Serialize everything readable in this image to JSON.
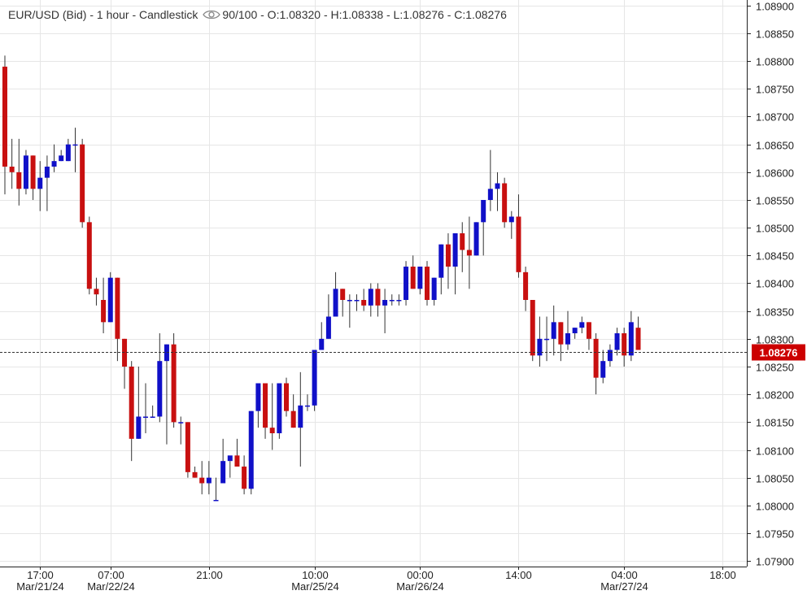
{
  "header": {
    "title": "EUR/USD (Bid) - 1 hour - Candlestick",
    "views": "90/100",
    "ohlc": "- O:1.08320 - H:1.08338 - L:1.08276 - C:1.08276"
  },
  "colors": {
    "up": "#1010c8",
    "down": "#c81010",
    "grid": "#e6e6e6",
    "axis": "#222222",
    "price_tag": "#cc0000"
  },
  "chart_data": {
    "type": "candlestick",
    "symbol": "EUR/USD (Bid)",
    "interval": "1 hour",
    "ylim": [
      1.0789,
      1.0891
    ],
    "y_ticks": [
      "1.07900",
      "1.07950",
      "1.08000",
      "1.08050",
      "1.08100",
      "1.08150",
      "1.08200",
      "1.08250",
      "1.08300",
      "1.08350",
      "1.08400",
      "1.08450",
      "1.08500",
      "1.08550",
      "1.08600",
      "1.08650",
      "1.08700",
      "1.08750",
      "1.08800",
      "1.08850",
      "1.08900"
    ],
    "x_ticks": [
      {
        "index": 5,
        "time": "17:00",
        "date": "Mar/21/24"
      },
      {
        "index": 15,
        "time": "07:00",
        "date": "Mar/22/24"
      },
      {
        "index": 29,
        "time": "21:00",
        "date": ""
      },
      {
        "index": 44,
        "time": "10:00",
        "date": "Mar/25/24"
      },
      {
        "index": 59,
        "time": "00:00",
        "date": "Mar/26/24"
      },
      {
        "index": 73,
        "time": "14:00",
        "date": ""
      },
      {
        "index": 88,
        "time": "04:00",
        "date": "Mar/27/24"
      },
      {
        "index": 102,
        "time": "18:00",
        "date": ""
      }
    ],
    "last_price": "1.08276",
    "candles": [
      [
        1.0879,
        1.0881,
        1.0856,
        1.0861
      ],
      [
        1.0861,
        1.0866,
        1.0857,
        1.086
      ],
      [
        1.086,
        1.0866,
        1.0854,
        1.0857
      ],
      [
        1.0857,
        1.0864,
        1.0856,
        1.0863
      ],
      [
        1.0863,
        1.0863,
        1.0855,
        1.0857
      ],
      [
        1.0857,
        1.0862,
        1.0853,
        1.0859
      ],
      [
        1.0859,
        1.0863,
        1.0853,
        1.0861
      ],
      [
        1.0861,
        1.0865,
        1.086,
        1.0862
      ],
      [
        1.0862,
        1.0864,
        1.0862,
        1.0863
      ],
      [
        1.0862,
        1.0866,
        1.0862,
        1.0865
      ],
      [
        1.0865,
        1.0868,
        1.086,
        1.0865
      ],
      [
        1.0865,
        1.0866,
        1.085,
        1.0851
      ],
      [
        1.0851,
        1.0852,
        1.0838,
        1.0839
      ],
      [
        1.0839,
        1.0841,
        1.0836,
        1.0838
      ],
      [
        1.0837,
        1.0841,
        1.0831,
        1.0833
      ],
      [
        1.0833,
        1.0842,
        1.0833,
        1.0841
      ],
      [
        1.0841,
        1.0841,
        1.0826,
        1.083
      ],
      [
        1.083,
        1.083,
        1.0821,
        1.0825
      ],
      [
        1.0825,
        1.0826,
        1.0808,
        1.0812
      ],
      [
        1.0812,
        1.0825,
        1.0812,
        1.0816
      ],
      [
        1.0816,
        1.0822,
        1.0813,
        1.0816
      ],
      [
        1.0816,
        1.0818,
        1.0816,
        1.0816
      ],
      [
        1.0816,
        1.0831,
        1.0815,
        1.0826
      ],
      [
        1.0826,
        1.0829,
        1.0811,
        1.0829
      ],
      [
        1.0829,
        1.0831,
        1.0814,
        1.0815
      ],
      [
        1.0815,
        1.0816,
        1.0811,
        1.0815
      ],
      [
        1.0815,
        1.0815,
        1.0805,
        1.0806
      ],
      [
        1.0806,
        1.0807,
        1.0805,
        1.0805
      ],
      [
        1.0805,
        1.0808,
        1.0802,
        1.0804
      ],
      [
        1.0804,
        1.0808,
        1.0802,
        1.0805
      ],
      [
        1.0801,
        1.0805,
        1.0801,
        1.0801
      ],
      [
        1.0804,
        1.0812,
        1.0804,
        1.0808
      ],
      [
        1.0808,
        1.0808,
        1.0805,
        1.0809
      ],
      [
        1.0809,
        1.0812,
        1.0808,
        1.0807
      ],
      [
        1.0807,
        1.0809,
        1.0802,
        1.0803
      ],
      [
        1.0803,
        1.0817,
        1.0802,
        1.0817
      ],
      [
        1.0817,
        1.0822,
        1.0814,
        1.0822
      ],
      [
        1.0822,
        1.0822,
        1.0812,
        1.0814
      ],
      [
        1.0814,
        1.0822,
        1.081,
        1.0813
      ],
      [
        1.0813,
        1.0822,
        1.0812,
        1.0822
      ],
      [
        1.0822,
        1.0823,
        1.0816,
        1.0817
      ],
      [
        1.0817,
        1.082,
        1.0814,
        1.0814
      ],
      [
        1.0814,
        1.0824,
        1.0807,
        1.0818
      ],
      [
        1.0818,
        1.082,
        1.0817,
        1.0818
      ],
      [
        1.0818,
        1.0828,
        1.0817,
        1.0828
      ],
      [
        1.0828,
        1.0833,
        1.0828,
        1.083
      ],
      [
        1.083,
        1.0838,
        1.083,
        1.0834
      ],
      [
        1.0834,
        1.0842,
        1.0834,
        1.0839
      ],
      [
        1.0839,
        1.0839,
        1.0834,
        1.0837
      ],
      [
        1.0837,
        1.0838,
        1.0832,
        1.0837
      ],
      [
        1.0837,
        1.0838,
        1.0835,
        1.0837
      ],
      [
        1.0837,
        1.0839,
        1.0835,
        1.0836
      ],
      [
        1.0836,
        1.084,
        1.0834,
        1.0839
      ],
      [
        1.0839,
        1.084,
        1.0834,
        1.0836
      ],
      [
        1.0836,
        1.0839,
        1.0831,
        1.0837
      ],
      [
        1.0837,
        1.0838,
        1.0836,
        1.0837
      ],
      [
        1.0837,
        1.0838,
        1.0836,
        1.0837
      ],
      [
        1.0837,
        1.0844,
        1.0836,
        1.0843
      ],
      [
        1.0843,
        1.0845,
        1.0839,
        1.0839
      ],
      [
        1.0839,
        1.0843,
        1.0838,
        1.0843
      ],
      [
        1.0843,
        1.0844,
        1.0836,
        1.0837
      ],
      [
        1.0837,
        1.0841,
        1.0836,
        1.0841
      ],
      [
        1.0841,
        1.0847,
        1.0838,
        1.0847
      ],
      [
        1.0847,
        1.0849,
        1.0839,
        1.0843
      ],
      [
        1.0843,
        1.0849,
        1.0838,
        1.0849
      ],
      [
        1.0849,
        1.0851,
        1.0842,
        1.0846
      ],
      [
        1.0846,
        1.0852,
        1.0839,
        1.0845
      ],
      [
        1.0845,
        1.0851,
        1.0845,
        1.0851
      ],
      [
        1.0851,
        1.0855,
        1.0845,
        1.0855
      ],
      [
        1.0855,
        1.0864,
        1.0853,
        1.0857
      ],
      [
        1.0857,
        1.086,
        1.0853,
        1.0858
      ],
      [
        1.0858,
        1.0859,
        1.085,
        1.0851
      ],
      [
        1.0851,
        1.0853,
        1.0848,
        1.0852
      ],
      [
        1.0852,
        1.0856,
        1.0841,
        1.0842
      ],
      [
        1.0842,
        1.0843,
        1.0835,
        1.0837
      ],
      [
        1.0837,
        1.0837,
        1.0826,
        1.0827
      ],
      [
        1.0827,
        1.0834,
        1.0825,
        1.083
      ],
      [
        1.083,
        1.0834,
        1.0826,
        1.083
      ],
      [
        1.083,
        1.0836,
        1.0827,
        1.0833
      ],
      [
        1.0833,
        1.0833,
        1.0826,
        1.0829
      ],
      [
        1.0829,
        1.0835,
        1.0828,
        1.0831
      ],
      [
        1.0831,
        1.0832,
        1.083,
        1.0832
      ],
      [
        1.0832,
        1.0834,
        1.0831,
        1.0833
      ],
      [
        1.0833,
        1.0833,
        1.0828,
        1.083
      ],
      [
        1.083,
        1.0831,
        1.082,
        1.0823
      ],
      [
        1.0823,
        1.0828,
        1.0822,
        1.0826
      ],
      [
        1.0826,
        1.0829,
        1.0825,
        1.0828
      ],
      [
        1.0828,
        1.0832,
        1.0827,
        1.0831
      ],
      [
        1.0831,
        1.0832,
        1.0825,
        1.0827
      ],
      [
        1.0827,
        1.0835,
        1.0826,
        1.0833
      ],
      [
        1.0832,
        1.0834,
        1.0828,
        1.0828
      ]
    ]
  }
}
